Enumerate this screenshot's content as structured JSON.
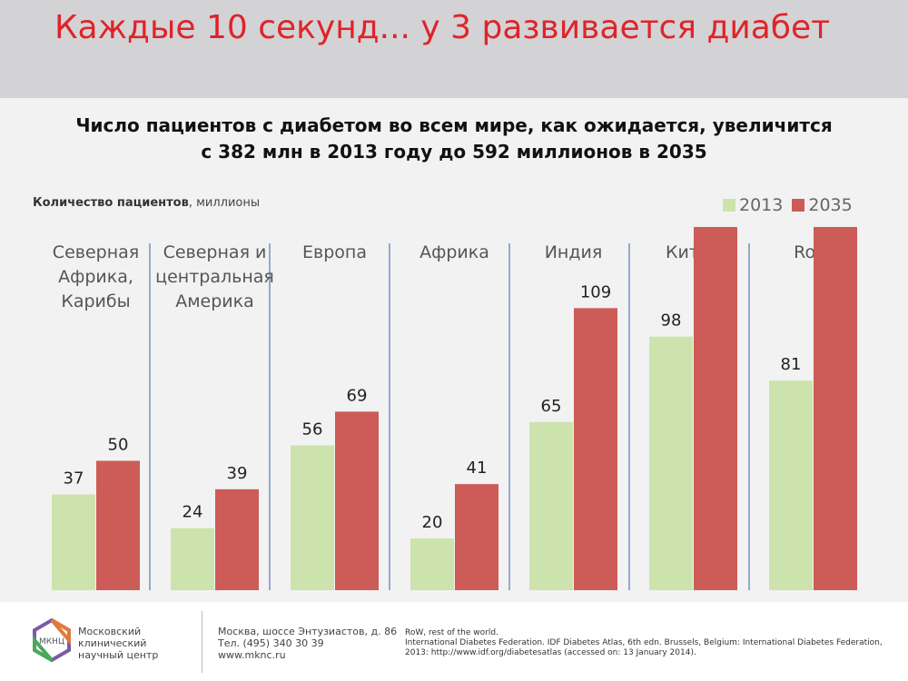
{
  "header": {
    "title": "Каждые 10 секунд... у 3 развивается диабет"
  },
  "subtitle": {
    "line1": "Число пациентов с диабетом во всем мире, как ожидается, увеличится",
    "line2": "с 382 млн в 2013 году до 592 миллионов в 2035"
  },
  "units": {
    "bold": "Количество пациентов",
    "rest": ", миллионы"
  },
  "colors": {
    "s2013": "#cde3ad",
    "s2035": "#cd5b57",
    "separator": "#3a5fa8"
  },
  "chart_data": {
    "type": "bar",
    "categories": [
      [
        "Северная",
        "Африка,",
        "Карибы"
      ],
      [
        "Северная и",
        "центральная",
        "Америка"
      ],
      [
        "Европа"
      ],
      [
        "Африка"
      ],
      [
        "Индия"
      ],
      [
        "Китай"
      ],
      [
        "RoW"
      ]
    ],
    "series": [
      {
        "name": "2013",
        "values": [
          37,
          24,
          56,
          20,
          65,
          98,
          81
        ]
      },
      {
        "name": "2035",
        "values": [
          50,
          39,
          69,
          41,
          109,
          143,
          141
        ]
      }
    ],
    "ylim": [
      0,
      150
    ],
    "legend": "top-right",
    "grid": false
  },
  "footer": {
    "logo_mark": "МКНЦ",
    "org": [
      "Московский",
      "клинический",
      "научный центр"
    ],
    "address": [
      "Москва, шоссе Энтузиастов, д. 86",
      "Тел. (495) 340 30 39",
      "www.mknc.ru"
    ],
    "source": [
      "RoW, rest of the world.",
      "International Diabetes Federation. IDF Diabetes Atlas, 6th edn. Brussels, Belgium: International Diabetes Federation,",
      "2013: http://www.idf.org/diabetesatlas (accessed on: 13 January 2014)."
    ]
  }
}
